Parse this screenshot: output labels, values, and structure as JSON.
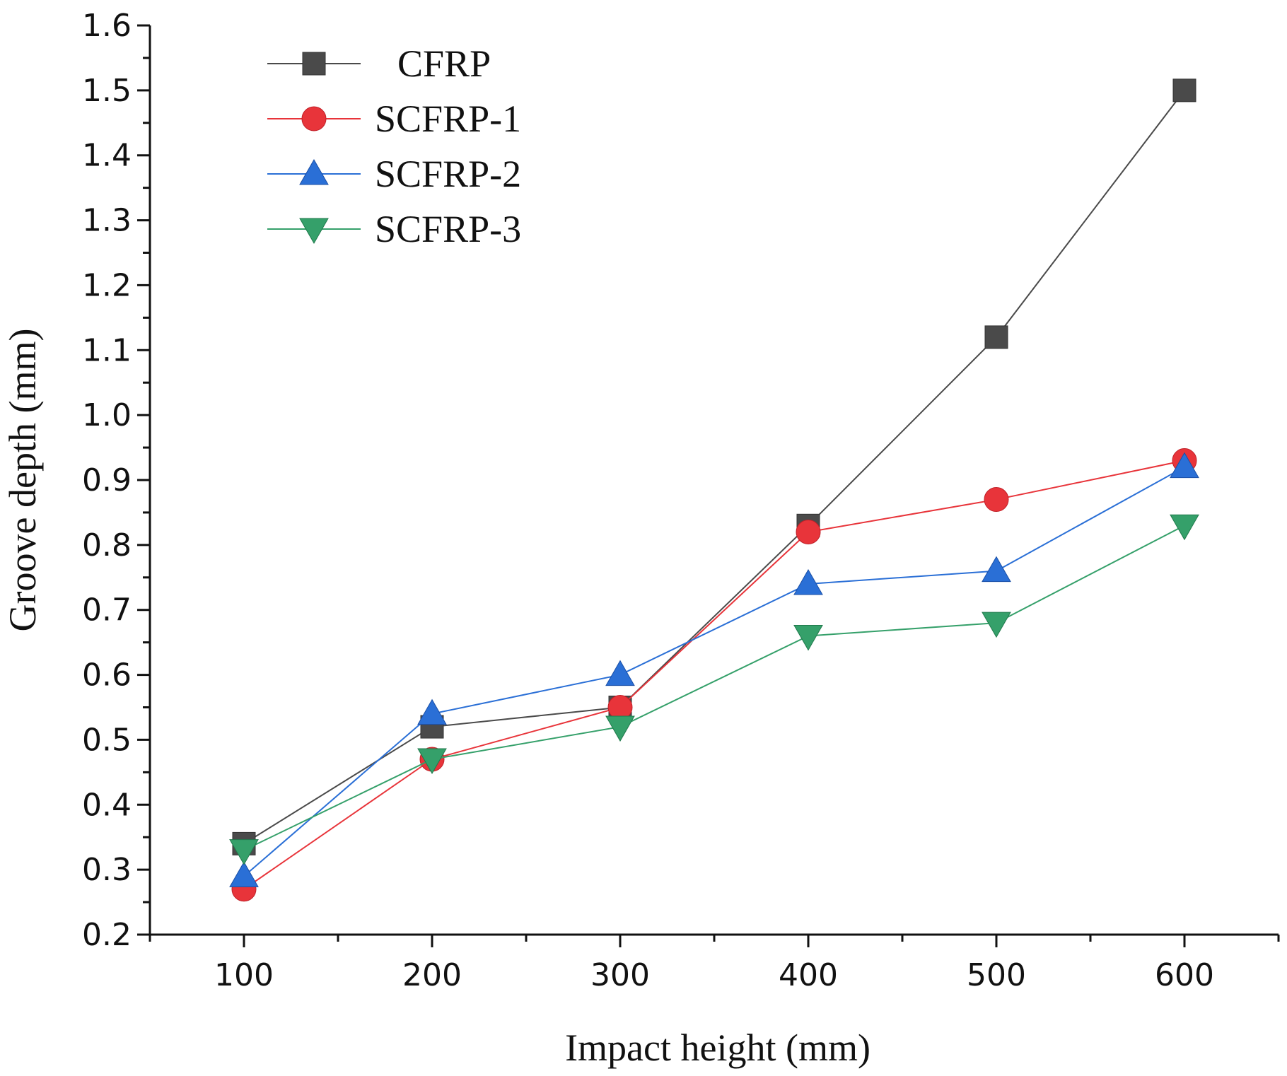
{
  "chart_data": {
    "type": "line",
    "title": "",
    "xlabel": "Impact height (mm)",
    "ylabel": "Groove depth (mm)",
    "x": [
      100,
      200,
      300,
      400,
      500,
      600
    ],
    "xlim": [
      50,
      650
    ],
    "ylim": [
      0.2,
      1.6
    ],
    "x_major_ticks": [
      100,
      200,
      300,
      400,
      500,
      600
    ],
    "x_tick_labels": [
      "100",
      "200",
      "300",
      "400",
      "500",
      "600"
    ],
    "y_major_ticks": [
      0.2,
      0.3,
      0.4,
      0.5,
      0.6,
      0.7,
      0.8,
      0.9,
      1.0,
      1.1,
      1.2,
      1.3,
      1.4,
      1.5,
      1.6
    ],
    "y_tick_labels": [
      "0.2",
      "0.3",
      "0.4",
      "0.5",
      "0.6",
      "0.7",
      "0.8",
      "0.9",
      "1.0",
      "1.1",
      "1.2",
      "1.3",
      "1.4",
      "1.5",
      "1.6"
    ],
    "grid": false,
    "legend_position": "top-left",
    "series": [
      {
        "name": "CFRP",
        "marker": "square",
        "color": "#4a4a4a",
        "values": [
          0.34,
          0.52,
          0.55,
          0.83,
          1.12,
          1.5
        ]
      },
      {
        "name": "SCFRP-1",
        "marker": "circle",
        "color": "#e8343a",
        "values": [
          0.27,
          0.47,
          0.55,
          0.82,
          0.87,
          0.93
        ]
      },
      {
        "name": "SCFRP-2",
        "marker": "triangle-up",
        "color": "#2a6fd6",
        "values": [
          0.29,
          0.54,
          0.6,
          0.74,
          0.76,
          0.92
        ]
      },
      {
        "name": "SCFRP-3",
        "marker": "triangle-down",
        "color": "#35a06a",
        "values": [
          0.33,
          0.47,
          0.52,
          0.66,
          0.68,
          0.83
        ]
      }
    ]
  }
}
